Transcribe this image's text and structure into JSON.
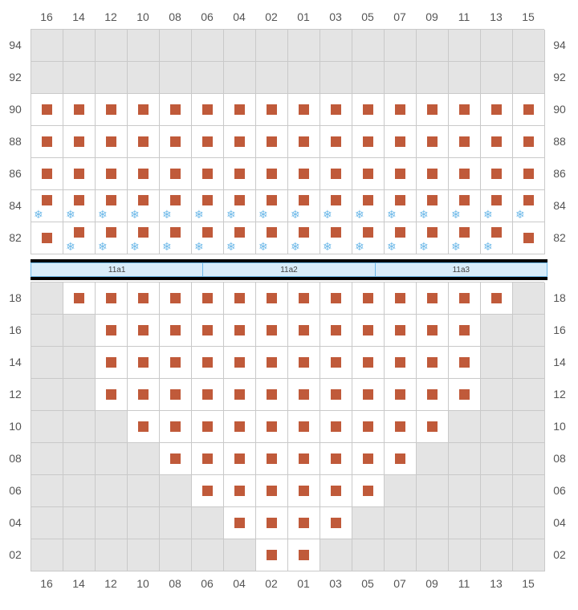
{
  "colors": {
    "empty": "#e4e4e4",
    "active": "#ffffff",
    "seat": "#c05a3a",
    "grid_border": "#c9c9c9",
    "label_text": "#555555",
    "snow": "#6cb8e8",
    "section_bg": "#d8ecf9",
    "section_border": "#6cb8e8",
    "bar_border": "#000000"
  },
  "layout": {
    "cols": 16,
    "cell_size": 40,
    "col_headers": [
      "16",
      "14",
      "12",
      "10",
      "08",
      "06",
      "04",
      "02",
      "01",
      "03",
      "05",
      "07",
      "09",
      "11",
      "13",
      "15"
    ]
  },
  "sections": [
    "11a1",
    "11a2",
    "11a3"
  ],
  "top_block": {
    "rows": [
      "94",
      "92",
      "90",
      "88",
      "86",
      "84",
      "82"
    ],
    "cells": [
      {
        "row": "94",
        "active": [],
        "snow": []
      },
      {
        "row": "92",
        "active": [],
        "snow": []
      },
      {
        "row": "90",
        "active": [
          0,
          1,
          2,
          3,
          4,
          5,
          6,
          7,
          8,
          9,
          10,
          11,
          12,
          13,
          14,
          15
        ],
        "snow": []
      },
      {
        "row": "88",
        "active": [
          0,
          1,
          2,
          3,
          4,
          5,
          6,
          7,
          8,
          9,
          10,
          11,
          12,
          13,
          14,
          15
        ],
        "snow": []
      },
      {
        "row": "86",
        "active": [
          0,
          1,
          2,
          3,
          4,
          5,
          6,
          7,
          8,
          9,
          10,
          11,
          12,
          13,
          14,
          15
        ],
        "snow": []
      },
      {
        "row": "84",
        "active": [
          0,
          1,
          2,
          3,
          4,
          5,
          6,
          7,
          8,
          9,
          10,
          11,
          12,
          13,
          14,
          15
        ],
        "snow": [
          0,
          1,
          2,
          3,
          4,
          5,
          6,
          7,
          8,
          9,
          10,
          11,
          12,
          13,
          14,
          15
        ]
      },
      {
        "row": "82",
        "active": [
          0,
          1,
          2,
          3,
          4,
          5,
          6,
          7,
          8,
          9,
          10,
          11,
          12,
          13,
          14,
          15
        ],
        "snow": [
          1,
          2,
          3,
          4,
          5,
          6,
          7,
          8,
          9,
          10,
          11,
          12,
          13,
          14
        ]
      }
    ]
  },
  "bottom_block": {
    "rows": [
      "18",
      "16",
      "14",
      "12",
      "10",
      "08",
      "06",
      "04",
      "02"
    ],
    "cells": [
      {
        "row": "18",
        "active": [
          1,
          2,
          3,
          4,
          5,
          6,
          7,
          8,
          9,
          10,
          11,
          12,
          13,
          14
        ]
      },
      {
        "row": "16",
        "active": [
          2,
          3,
          4,
          5,
          6,
          7,
          8,
          9,
          10,
          11,
          12,
          13
        ]
      },
      {
        "row": "14",
        "active": [
          2,
          3,
          4,
          5,
          6,
          7,
          8,
          9,
          10,
          11,
          12,
          13
        ]
      },
      {
        "row": "12",
        "active": [
          2,
          3,
          4,
          5,
          6,
          7,
          8,
          9,
          10,
          11,
          12,
          13
        ]
      },
      {
        "row": "10",
        "active": [
          3,
          4,
          5,
          6,
          7,
          8,
          9,
          10,
          11,
          12
        ]
      },
      {
        "row": "08",
        "active": [
          4,
          5,
          6,
          7,
          8,
          9,
          10,
          11
        ]
      },
      {
        "row": "06",
        "active": [
          5,
          6,
          7,
          8,
          9,
          10
        ]
      },
      {
        "row": "04",
        "active": [
          6,
          7,
          8,
          9
        ]
      },
      {
        "row": "02",
        "active": [
          7,
          8
        ]
      }
    ]
  }
}
